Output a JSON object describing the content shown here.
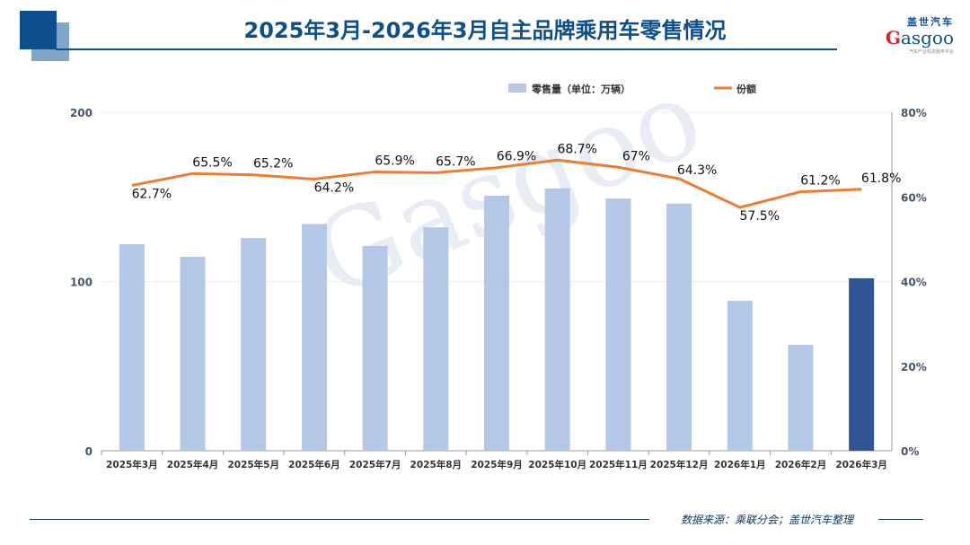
{
  "title": "2025年3月-2026年3月自主品牌乘用车零售情况",
  "logo": {
    "cn": "盖世汽车",
    "en": "Gasgoo",
    "sub": "汽车产业信息服务平台"
  },
  "watermark": "Gasgoo",
  "footer": "数据来源：乘联分会；盖世汽车整理",
  "chart_data": {
    "type": "bar+line",
    "categories": [
      "2025年3月",
      "2025年4月",
      "2025年5月",
      "2025年6月",
      "2025年7月",
      "2025年8月",
      "2025年9月",
      "2025年10月",
      "2025年11月",
      "2025年12月",
      "2026年1月",
      "2026年2月",
      "2026年3月"
    ],
    "series": [
      {
        "name": "零售量（单位：万辆）",
        "type": "bar",
        "axis": "left",
        "color": "#b4c7e7",
        "highlight_color": "#2f5597",
        "values": [
          122,
          114.6,
          125.7,
          134,
          121,
          132,
          150.7,
          155,
          149,
          146,
          88.6,
          62.6,
          101.9
        ]
      },
      {
        "name": "份额",
        "type": "line",
        "axis": "right",
        "color": "#ed7d31",
        "values": [
          62.7,
          65.5,
          65.2,
          64.2,
          65.9,
          65.7,
          66.9,
          68.7,
          67,
          64.3,
          57.5,
          61.2,
          61.8
        ],
        "labels": [
          "62.7%",
          "65.5%",
          "65.2%",
          "64.2%",
          "65.9%",
          "65.7%",
          "66.9%",
          "68.7%",
          "67%",
          "64.3%",
          "57.5%",
          "61.2%",
          "61.8%"
        ]
      }
    ],
    "y_left": {
      "range": [
        0,
        200
      ],
      "ticks": [
        "0",
        "100",
        "200"
      ]
    },
    "y_right": {
      "range": [
        0,
        80
      ],
      "ticks": [
        "0%",
        "20%",
        "40%",
        "60%",
        "80%"
      ]
    },
    "legend": "top",
    "grid": true
  }
}
